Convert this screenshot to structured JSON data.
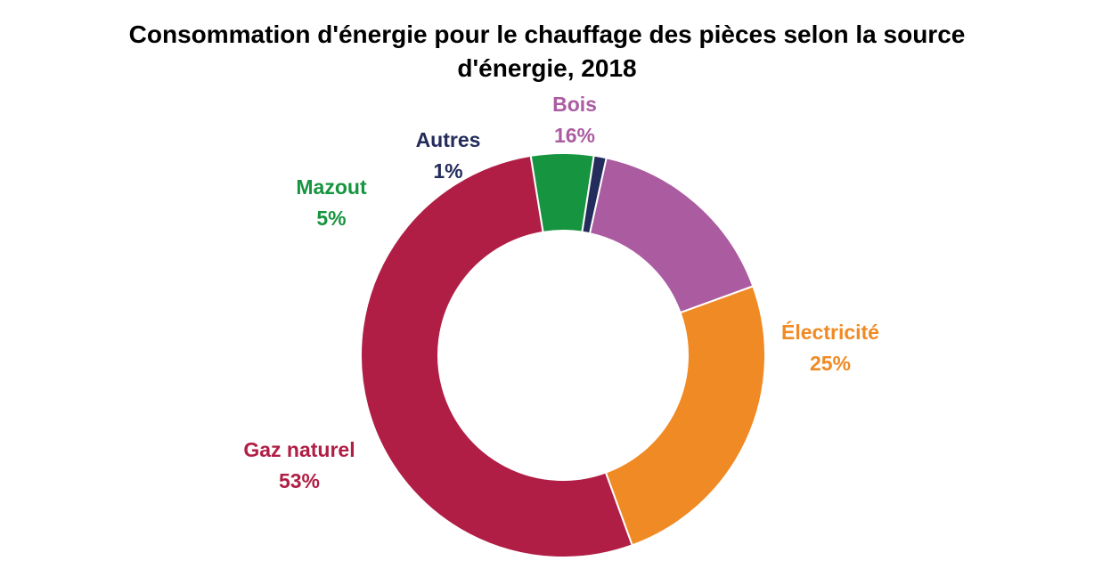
{
  "chart_data": {
    "type": "pie",
    "title_lines": [
      "Consommation d'énergie pour le chauffage des pièces selon la source",
      "d'énergie, 2018"
    ],
    "slices": [
      {
        "label": "Électricité",
        "value": 25,
        "value_label": "25%",
        "color": "#f08a24"
      },
      {
        "label": "Gaz naturel",
        "value": 53,
        "value_label": "53%",
        "color": "#b01e45"
      },
      {
        "label": "Mazout",
        "value": 5,
        "value_label": "5%",
        "color": "#17943f"
      },
      {
        "label": "Autres",
        "value": 1,
        "value_label": "1%",
        "color": "#232c5b"
      },
      {
        "label": "Bois",
        "value": 16,
        "value_label": "16%",
        "color": "#ab5ca0"
      }
    ]
  }
}
